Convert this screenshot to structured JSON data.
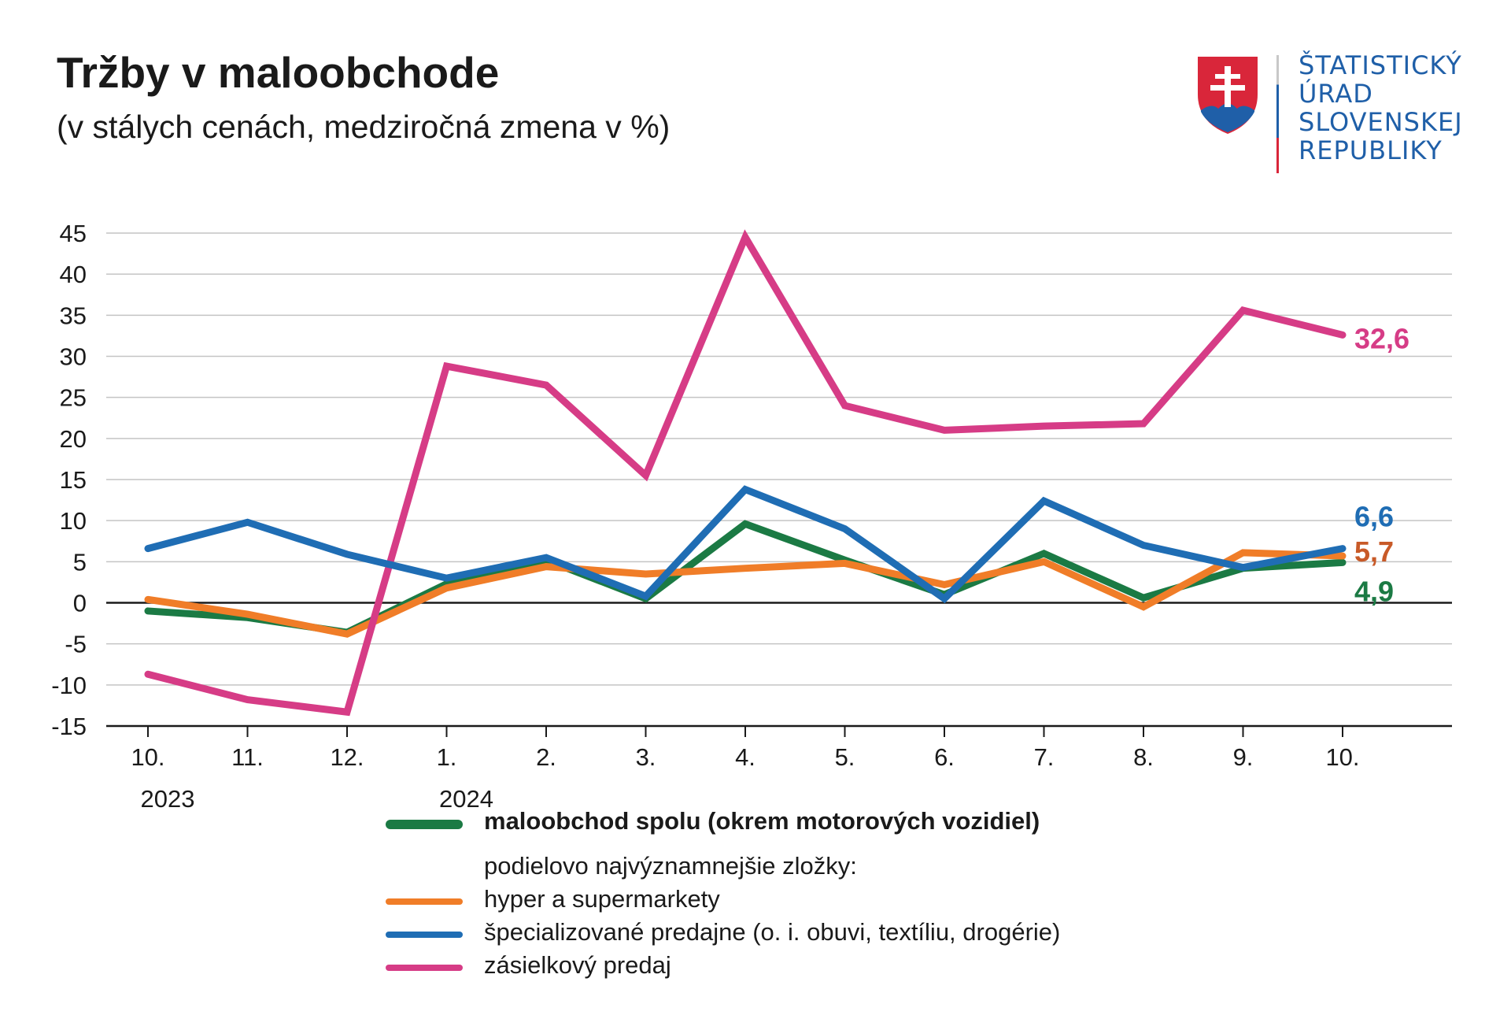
{
  "title": "Tržby v maloobchode",
  "subtitle": "(v stálych cenách, medziročná zmena v %)",
  "logo": {
    "org_lines": [
      "ŠTATISTICKÝ",
      "ÚRAD",
      "SLOVENSKEJ",
      "REPUBLIKY"
    ],
    "icon": "slovak-coat-of-arms-icon",
    "colors": {
      "text": "#1f5fa8",
      "divider_top": "#c8c8c8",
      "divider_mid": "#1f5fa8",
      "divider_bottom": "#d9263a"
    }
  },
  "legend": {
    "total_label": "maloobchod spolu (okrem motorových vozidiel)",
    "components_heading": "podielovo najvýznamnejšie zložky:",
    "items": [
      {
        "label": "hyper a supermarkety",
        "color": "#f07d28"
      },
      {
        "label": "špecializované predajne (o. i. obuvi, textíliu, drogérie)",
        "color": "#1f6db4"
      },
      {
        "label": "zásielkový predaj",
        "color": "#d63c86"
      }
    ]
  },
  "chart_data": {
    "type": "line",
    "categories": [
      "10.",
      "11.",
      "12.",
      "1.",
      "2.",
      "3.",
      "4.",
      "5.",
      "6.",
      "7.",
      "8.",
      "9.",
      "10."
    ],
    "year_labels": [
      {
        "index": 0,
        "label": "2023"
      },
      {
        "index": 3,
        "label": "2024"
      }
    ],
    "ylim": [
      -15,
      45
    ],
    "yticks": [
      -15,
      -10,
      -5,
      0,
      5,
      10,
      15,
      20,
      25,
      30,
      35,
      40,
      45
    ],
    "grid": true,
    "series": [
      {
        "name": "maloobchod spolu (okrem motorových vozidiel)",
        "color": "#1b7a44",
        "values": [
          -1.0,
          -1.8,
          -3.6,
          2.3,
          5.2,
          0.5,
          9.6,
          5.2,
          1.0,
          6.0,
          0.6,
          4.2,
          4.9
        ],
        "end_label": "4,9",
        "end_label_color": "#1b7a44"
      },
      {
        "name": "hyper a supermarkety",
        "color": "#f07d28",
        "values": [
          0.4,
          -1.4,
          -3.8,
          1.8,
          4.4,
          3.5,
          4.2,
          4.8,
          2.2,
          5.0,
          -0.5,
          6.1,
          5.7
        ],
        "end_label": "5,7",
        "end_label_color": "#c85a28"
      },
      {
        "name": "zásielkový predaj",
        "color": "#d63c86",
        "values": [
          -8.7,
          -11.8,
          -13.3,
          28.8,
          26.5,
          15.5,
          44.5,
          24.0,
          21.0,
          21.5,
          21.8,
          35.6,
          32.6
        ],
        "end_label": "32,6",
        "end_label_color": "#d63c86"
      },
      {
        "name": "špecializované predajne (o. i. obuvi, textíliu, drogérie)",
        "color": "#1f6db4",
        "values": [
          6.6,
          9.8,
          5.9,
          3.0,
          5.5,
          0.8,
          13.8,
          9.0,
          0.5,
          12.4,
          7.0,
          4.3,
          6.6
        ],
        "end_label": "6,6",
        "end_label_color": "#1f6db4"
      }
    ]
  }
}
